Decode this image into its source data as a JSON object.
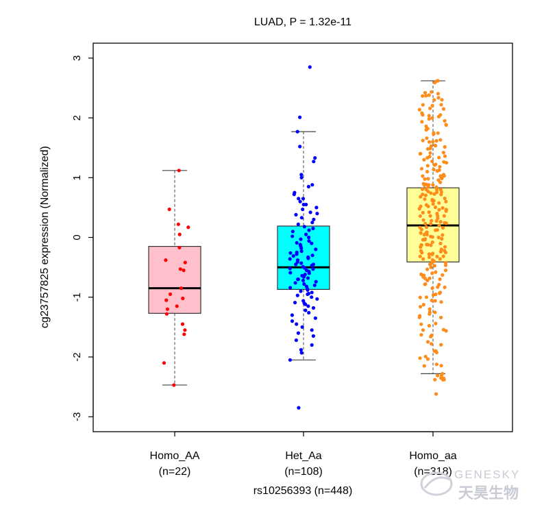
{
  "chart_data": {
    "type": "box",
    "title": "LUAD, P = 1.32e-11",
    "xlabel": "rs10256393 (n=448)",
    "ylabel": "cg23757825 expression (Normalized)",
    "ylim": [
      -3.25,
      3.25
    ],
    "yticks": [
      "3",
      "2",
      "1",
      "0",
      "-1",
      "-2",
      "-3"
    ],
    "ytick_values": [
      3,
      2,
      1,
      0,
      -1,
      -2,
      -3
    ],
    "groups": [
      {
        "name": "Homo_AA",
        "count_label": "(n=22)",
        "n": 22,
        "box_color": "#ffc0cb",
        "point_color": "#ff0000",
        "whisker_low": -2.47,
        "q1": -1.27,
        "median": -0.85,
        "q3": -0.15,
        "whisker_high": 1.12
      },
      {
        "name": "Het_Aa",
        "count_label": "(n=108)",
        "n": 108,
        "box_color": "#00ffff",
        "point_color": "#0000ff",
        "whisker_low": -2.05,
        "q1": -0.87,
        "median": -0.5,
        "q3": 0.19,
        "whisker_high": 1.77
      },
      {
        "name": "Homo_aa",
        "count_label": "(n=318)",
        "n": 318,
        "box_color": "#ffff99",
        "point_color": "#ff8c1a",
        "whisker_low": -2.28,
        "q1": -0.41,
        "median": 0.2,
        "q3": 0.83,
        "whisker_high": 2.62
      }
    ],
    "points": [
      [
        1.12,
        0.47,
        0.22,
        0.17,
        0.05,
        -0.17,
        -0.38,
        -0.42,
        -0.53,
        -0.55,
        -0.85,
        -0.95,
        -1.02,
        -1.05,
        -1.15,
        -1.2,
        -1.28,
        -1.45,
        -1.55,
        -1.62,
        -2.1,
        -2.47
      ],
      [
        2.85,
        2.01,
        1.77,
        1.52,
        1.33,
        1.27,
        1.05,
        1.0,
        0.88,
        0.75,
        0.72,
        0.65,
        0.6,
        0.55,
        0.5,
        0.47,
        0.42,
        0.38,
        0.33,
        0.3,
        0.25,
        0.22,
        0.18,
        0.15,
        0.12,
        0.1,
        0.05,
        0.02,
        0.0,
        -0.03,
        -0.06,
        -0.09,
        -0.12,
        -0.15,
        -0.18,
        -0.2,
        -0.23,
        -0.26,
        -0.28,
        -0.31,
        -0.33,
        -0.36,
        -0.38,
        -0.41,
        -0.43,
        -0.45,
        -0.47,
        -0.49,
        -0.51,
        -0.53,
        -0.55,
        -0.57,
        -0.59,
        -0.62,
        -0.64,
        -0.66,
        -0.68,
        -0.7,
        -0.72,
        -0.74,
        -0.76,
        -0.78,
        -0.8,
        -0.82,
        -0.84,
        -0.86,
        -0.88,
        -0.9,
        -0.92,
        -0.94,
        -0.97,
        -1.0,
        -1.03,
        -1.06,
        -1.09,
        -1.12,
        -1.15,
        -1.18,
        -1.22,
        -1.26,
        -1.3,
        -1.35,
        -1.4,
        -1.45,
        -1.5,
        -1.55,
        -1.6,
        -1.65,
        -1.72,
        -1.8,
        -1.88,
        -1.93,
        -2.05,
        -2.85,
        -0.6,
        -0.3,
        -0.1,
        0.4,
        0.55,
        -0.45,
        -0.7,
        -0.52,
        -0.25,
        -1.1,
        -0.95,
        0.85,
        -0.35,
        0.65
      ],
      [
        2.62,
        2.42,
        2.38,
        2.3,
        2.22,
        2.15,
        2.08,
        2.02,
        1.95,
        1.88,
        1.8,
        1.73,
        1.66,
        1.6,
        1.54,
        1.48,
        1.42,
        1.36,
        1.3,
        1.25,
        1.2,
        1.15,
        1.1,
        1.05,
        1.0,
        0.96,
        0.92,
        0.88,
        0.84,
        0.8,
        0.76,
        0.72,
        0.68,
        0.64,
        0.6,
        0.56,
        0.52,
        0.48,
        0.44,
        0.4,
        0.36,
        0.32,
        0.28,
        0.24,
        0.2,
        0.16,
        0.12,
        0.08,
        0.04,
        0.0,
        -0.04,
        -0.08,
        -0.12,
        -0.16,
        -0.2,
        -0.24,
        -0.28,
        -0.32,
        -0.36,
        -0.4,
        -0.45,
        -0.5,
        -0.55,
        -0.6,
        -0.66,
        -0.72,
        -0.78,
        -0.85,
        -0.92,
        -1.0,
        -1.08,
        -1.16,
        -1.25,
        -1.34,
        -1.44,
        -1.55,
        -1.66,
        -1.78,
        -1.9,
        -2.02,
        -2.15,
        -2.28,
        -2.35,
        -2.62
      ]
    ]
  },
  "watermark": {
    "en": "GENESKY",
    "zh": "天昊生物"
  }
}
